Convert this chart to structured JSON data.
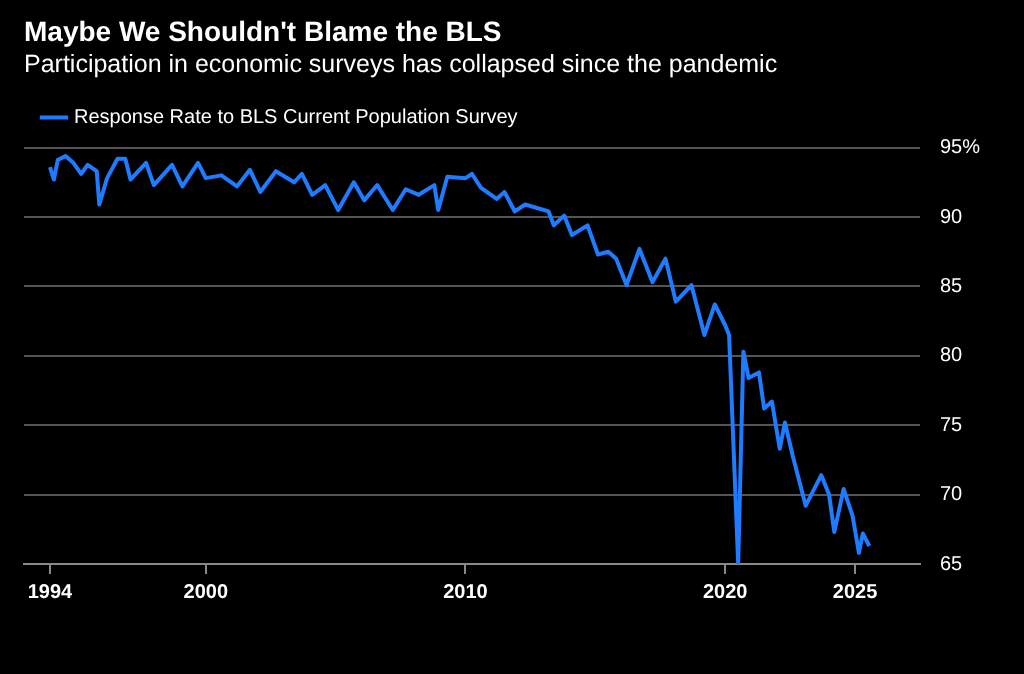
{
  "chart_data": {
    "type": "line",
    "title": "Maybe We Shouldn't Blame the BLS",
    "subtitle": "Participation in economic surveys has collapsed since the pandemic",
    "x": [
      1994.0,
      1994.15,
      1994.3,
      1994.6,
      1994.9,
      1995.2,
      1995.45,
      1995.8,
      1995.9,
      1996.2,
      1996.6,
      1996.9,
      1997.1,
      1997.7,
      1998.0,
      1998.7,
      1999.1,
      1999.7,
      2000.0,
      2000.6,
      2001.2,
      2001.7,
      2002.1,
      2002.7,
      2003.4,
      2003.7,
      2004.1,
      2004.6,
      2005.1,
      2005.7,
      2006.1,
      2006.6,
      2007.2,
      2007.7,
      2008.2,
      2008.8,
      2008.95,
      2009.3,
      2010.0,
      2010.25,
      2010.6,
      2011.2,
      2011.5,
      2011.9,
      2012.3,
      2013.2,
      2013.4,
      2013.8,
      2014.1,
      2014.7,
      2015.1,
      2015.5,
      2015.8,
      2016.2,
      2016.7,
      2017.2,
      2017.7,
      2018.1,
      2018.7,
      2019.2,
      2019.6,
      2020.0,
      2020.15,
      2020.5,
      2020.7,
      2020.9,
      2021.3,
      2021.5,
      2021.8,
      2022.1,
      2022.3,
      2022.6,
      2023.1,
      2023.7,
      2024.0,
      2024.2,
      2024.56,
      2024.9,
      2025.15,
      2025.3,
      2025.55
    ],
    "series": [
      {
        "name": "Response Rate to BLS Current Population Survey",
        "color": "#1f7bff",
        "values": [
          93.6,
          92.7,
          94.1,
          94.4,
          93.9,
          93.1,
          93.75,
          93.3,
          90.9,
          92.8,
          94.2,
          94.2,
          92.7,
          93.9,
          92.3,
          93.75,
          92.2,
          93.9,
          92.8,
          93.0,
          92.2,
          93.4,
          91.8,
          93.3,
          92.5,
          93.1,
          91.6,
          92.3,
          90.5,
          92.5,
          91.2,
          92.3,
          90.5,
          92.0,
          91.6,
          92.3,
          90.5,
          92.9,
          92.8,
          93.1,
          92.1,
          91.3,
          91.8,
          90.4,
          90.9,
          90.4,
          89.4,
          90.1,
          88.7,
          89.4,
          87.3,
          87.5,
          87.0,
          85.1,
          87.7,
          85.3,
          87.0,
          83.9,
          85.1,
          81.5,
          83.7,
          82.2,
          81.5,
          65.0,
          80.3,
          78.4,
          78.8,
          76.2,
          76.7,
          73.3,
          75.2,
          72.8,
          69.2,
          71.4,
          70.0,
          67.3,
          70.4,
          68.5,
          65.8,
          67.2,
          66.3
        ]
      }
    ],
    "xlim": [
      1993,
      2027.5
    ],
    "xticks": [
      1994,
      2000,
      2010,
      2020,
      2025
    ],
    "ylim": [
      65,
      95
    ],
    "yticks": [
      {
        "value": 95,
        "label": "95%"
      },
      90,
      85,
      80,
      75,
      70,
      65
    ],
    "grid": "y",
    "legend": "top left",
    "marker": "none",
    "line_style": "solid"
  }
}
